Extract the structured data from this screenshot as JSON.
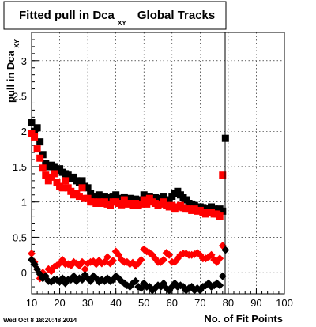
{
  "chart_data": {
    "type": "scatter",
    "title_main": "Fitted pull in Dca",
    "title_sub": "XY",
    "title_rest": "Global Tracks",
    "xlabel": "No. of Fit Points",
    "ylabel_main": "pull in Dca",
    "ylabel_sub": "XY",
    "xlim": [
      10,
      100
    ],
    "ylim": [
      -0.3,
      3.4
    ],
    "x_ticks": [
      "10",
      "20",
      "30",
      "40",
      "50",
      "60",
      "70",
      "80",
      "90",
      "100"
    ],
    "y_ticks": [
      "0",
      "0.5",
      "1",
      "1.5",
      "2",
      "2.5",
      "3"
    ],
    "grid": true,
    "series": [
      {
        "marker": "square",
        "color": "#000000",
        "x": [
          10,
          11,
          12,
          13,
          14,
          15,
          16,
          17,
          18,
          19,
          20,
          21,
          22,
          23,
          24,
          25,
          26,
          27,
          28,
          29,
          30,
          31,
          32,
          33,
          34,
          35,
          36,
          37,
          38,
          39,
          40,
          41,
          42,
          43,
          44,
          45,
          46,
          47,
          48,
          49,
          50,
          51,
          52,
          53,
          54,
          55,
          56,
          57,
          58,
          59,
          60,
          61,
          62,
          63,
          64,
          65,
          66,
          67,
          68,
          69,
          70,
          71,
          72,
          73,
          74,
          75,
          76,
          77,
          78,
          79
        ],
        "y": [
          2.12,
          2.0,
          2.05,
          1.85,
          1.67,
          1.55,
          1.5,
          1.52,
          1.5,
          1.45,
          1.47,
          1.42,
          1.4,
          1.38,
          1.33,
          1.35,
          1.3,
          1.28,
          1.3,
          1.22,
          1.2,
          1.12,
          1.08,
          1.05,
          1.1,
          1.05,
          1.08,
          1.06,
          1.02,
          1.08,
          1.1,
          1.05,
          1.03,
          1.07,
          1.02,
          1.05,
          1.0,
          1.04,
          1.0,
          1.03,
          1.1,
          1.05,
          1.08,
          1.03,
          1.06,
          1.05,
          1.04,
          1.08,
          1.0,
          1.03,
          1.08,
          1.12,
          1.15,
          1.1,
          1.06,
          1.03,
          0.98,
          0.97,
          0.95,
          0.93,
          0.93,
          0.92,
          0.9,
          0.9,
          0.93,
          0.9,
          0.85,
          0.9,
          0.87,
          1.9
        ]
      },
      {
        "marker": "square",
        "color": "#ff0000",
        "x": [
          10,
          11,
          12,
          13,
          14,
          15,
          16,
          17,
          18,
          19,
          20,
          21,
          22,
          23,
          24,
          25,
          26,
          27,
          28,
          29,
          30,
          31,
          32,
          33,
          34,
          35,
          36,
          37,
          38,
          39,
          40,
          41,
          42,
          43,
          44,
          45,
          46,
          47,
          48,
          49,
          50,
          51,
          52,
          53,
          54,
          55,
          56,
          57,
          58,
          59,
          60,
          61,
          62,
          63,
          64,
          65,
          66,
          67,
          68,
          69,
          70,
          71,
          72,
          73,
          74,
          75,
          76,
          77,
          78
        ],
        "y": [
          1.97,
          1.92,
          1.75,
          1.62,
          1.48,
          1.38,
          1.3,
          1.35,
          1.4,
          1.28,
          1.22,
          1.2,
          1.3,
          1.2,
          1.15,
          1.1,
          1.12,
          1.08,
          1.2,
          1.05,
          1.05,
          1.0,
          1.0,
          0.98,
          1.0,
          0.98,
          1.0,
          0.97,
          0.95,
          1.0,
          1.0,
          0.98,
          0.96,
          1.03,
          0.97,
          0.98,
          0.95,
          0.98,
          0.95,
          0.97,
          1.03,
          0.97,
          1.05,
          1.0,
          0.98,
          0.95,
          0.97,
          1.0,
          0.95,
          0.93,
          0.95,
          0.9,
          0.93,
          0.95,
          0.92,
          0.9,
          0.9,
          0.88,
          0.9,
          0.87,
          0.88,
          0.85,
          0.83,
          0.85,
          0.85,
          0.83,
          0.83,
          0.8,
          1.38
        ]
      },
      {
        "marker": "diamond",
        "color": "#ff0000",
        "x": [
          10,
          11,
          12,
          13,
          14,
          15,
          16,
          17,
          18,
          19,
          20,
          21,
          22,
          23,
          24,
          25,
          26,
          27,
          28,
          29,
          30,
          31,
          32,
          33,
          34,
          35,
          36,
          37,
          38,
          39,
          40,
          41,
          42,
          43,
          44,
          45,
          46,
          47,
          48,
          49,
          50,
          51,
          52,
          53,
          54,
          55,
          56,
          57,
          58,
          59,
          60,
          61,
          62,
          63,
          64,
          65,
          66,
          67,
          68,
          69,
          70,
          71,
          72,
          73,
          74,
          75,
          76,
          77,
          78
        ],
        "y": [
          0.27,
          0.15,
          0.05,
          -0.08,
          0.0,
          -0.05,
          0.05,
          0.02,
          0.08,
          0.1,
          0.13,
          0.18,
          0.12,
          0.12,
          0.1,
          0.15,
          0.13,
          0.1,
          0.15,
          0.05,
          0.13,
          0.15,
          0.16,
          0.12,
          0.17,
          0.13,
          0.15,
          0.22,
          0.13,
          0.17,
          0.3,
          0.25,
          0.18,
          0.15,
          0.15,
          0.12,
          0.14,
          0.1,
          0.13,
          0.18,
          0.33,
          0.3,
          0.28,
          0.25,
          0.2,
          0.15,
          0.15,
          0.18,
          0.28,
          0.25,
          0.15,
          0.15,
          0.2,
          0.25,
          0.27,
          0.27,
          0.25,
          0.25,
          0.26,
          0.28,
          0.25,
          0.2,
          0.2,
          0.22,
          0.25,
          0.18,
          0.15,
          0.2,
          0.38
        ]
      },
      {
        "marker": "diamond",
        "color": "#000000",
        "x": [
          10,
          11,
          12,
          13,
          14,
          15,
          16,
          17,
          18,
          19,
          20,
          21,
          22,
          23,
          24,
          25,
          26,
          27,
          28,
          29,
          30,
          31,
          32,
          33,
          34,
          35,
          36,
          37,
          38,
          39,
          40,
          41,
          42,
          43,
          44,
          45,
          46,
          47,
          48,
          49,
          50,
          51,
          52,
          53,
          54,
          55,
          56,
          57,
          58,
          59,
          60,
          61,
          62,
          63,
          64,
          65,
          66,
          67,
          68,
          69,
          70,
          71,
          72,
          73,
          74,
          75,
          76,
          77,
          78,
          79
        ],
        "y": [
          0.18,
          0.12,
          0.05,
          -0.02,
          -0.08,
          -0.05,
          -0.12,
          -0.13,
          -0.1,
          -0.1,
          -0.13,
          -0.08,
          -0.15,
          -0.1,
          -0.1,
          -0.05,
          -0.12,
          -0.08,
          -0.1,
          -0.03,
          -0.08,
          -0.12,
          -0.05,
          -0.08,
          -0.13,
          -0.1,
          -0.12,
          -0.08,
          -0.12,
          -0.1,
          -0.05,
          -0.08,
          -0.12,
          -0.15,
          -0.18,
          -0.2,
          -0.15,
          -0.12,
          -0.2,
          -0.22,
          -0.15,
          -0.2,
          -0.2,
          -0.25,
          -0.22,
          -0.18,
          -0.2,
          -0.15,
          -0.22,
          -0.25,
          -0.2,
          -0.15,
          -0.2,
          -0.18,
          -0.2,
          -0.25,
          -0.22,
          -0.2,
          -0.25,
          -0.22,
          -0.25,
          -0.2,
          -0.18,
          -0.15,
          -0.2,
          -0.18,
          -0.15,
          -0.18,
          -0.05,
          0.32
        ]
      }
    ]
  },
  "footer": {
    "date": "Wed Oct  8 18:20:48 2014"
  }
}
